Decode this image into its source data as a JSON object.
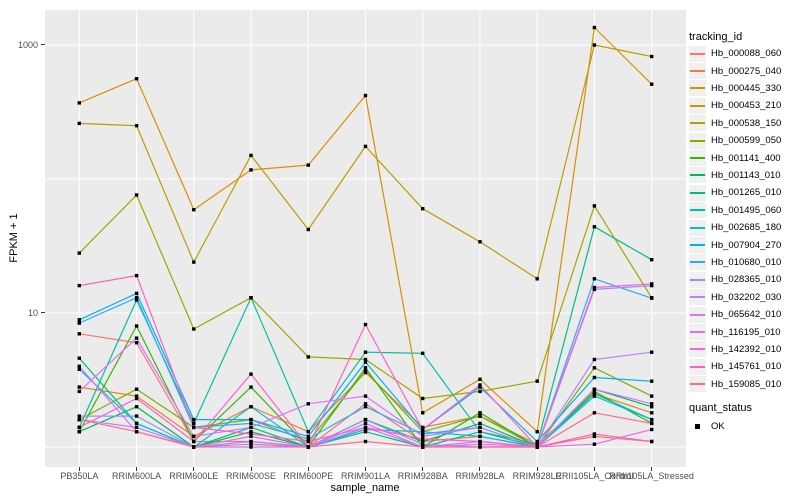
{
  "figure": {
    "background": "#ffffff",
    "panel_background": "#ebebeb",
    "grid_color": "#ffffff",
    "tick_color": "#333333",
    "tick_label_color": "#4d4d4d",
    "marker_color": "#000000"
  },
  "axes": {
    "x_title": "sample_name",
    "y_title": "FPKM + 1",
    "y_ticks": [
      {
        "label": "1000",
        "value": 1000
      },
      {
        "label": "10",
        "value": 10
      }
    ]
  },
  "legend": {
    "tracking_title": "tracking_id",
    "quant_title": "quant_status",
    "quant_items": [
      {
        "label": "OK",
        "marker": "black-square"
      }
    ]
  },
  "chart_data": {
    "type": "line",
    "title": "",
    "xlabel": "sample_name",
    "ylabel": "FPKM + 1",
    "y_scale": "log10",
    "ylim": [
      1,
      1400
    ],
    "y_gridlines": [
      1,
      10,
      100,
      1000
    ],
    "grid": "major-only",
    "legend_position": "right",
    "marker": {
      "shape": "square",
      "color": "#000000",
      "size": 3.4
    },
    "categories": [
      "PB350LA",
      "RRIM600LA",
      "RRIM600LE",
      "RRIM600SE",
      "RRIM600PE",
      "RRIM901LA",
      "RRIM928BA",
      "RRIM928LA",
      "RRIM928LE",
      "RRII105LA_Control",
      "RRII105LA_Stressed"
    ],
    "series": [
      {
        "name": "Hb_000088_060",
        "color": "#F8766D",
        "values": [
          7,
          6,
          1.1,
          1.1,
          1,
          2.1,
          1.1,
          1.2,
          1,
          1.2,
          1.1
        ]
      },
      {
        "name": "Hb_000275_040",
        "color": "#EA8331",
        "values": [
          2.8,
          2.4,
          1.2,
          2,
          1.3,
          3.6,
          1.4,
          1.7,
          1.05,
          2.5,
          1.8
        ]
      },
      {
        "name": "Hb_000445_330",
        "color": "#D89000",
        "values": [
          370,
          560,
          59,
          117,
          127,
          420,
          1.8,
          3.2,
          1.3,
          1350,
          510
        ]
      },
      {
        "name": "Hb_000453_210",
        "color": "#C09B00",
        "values": [
          260,
          250,
          24,
          150,
          42,
          175,
          60,
          34,
          18,
          1000,
          820
        ]
      },
      {
        "name": "Hb_000538_150",
        "color": "#A3A500",
        "values": [
          28,
          76,
          7.6,
          13,
          4.7,
          4.5,
          2.3,
          2.6,
          3.1,
          63,
          13
        ]
      },
      {
        "name": "Hb_000599_050",
        "color": "#7CAE00",
        "values": [
          1.6,
          2.7,
          1.4,
          1.6,
          1.1,
          3.7,
          1.3,
          1.7,
          1,
          3.9,
          2.4
        ]
      },
      {
        "name": "Hb_001141_400",
        "color": "#39B600",
        "values": [
          1.3,
          8,
          1.1,
          2.8,
          1,
          3.9,
          1,
          1.8,
          1,
          2.6,
          1.5
        ]
      },
      {
        "name": "Hb_001143_010",
        "color": "#00BB4E",
        "values": [
          1.3,
          2,
          1,
          1.3,
          1,
          1.6,
          1.1,
          1.5,
          1,
          2.7,
          2
        ]
      },
      {
        "name": "Hb_001265_010",
        "color": "#00BF7D",
        "values": [
          4.6,
          1.5,
          1,
          1.4,
          1,
          1.3,
          1,
          1.3,
          1.05,
          44,
          25
        ]
      },
      {
        "name": "Hb_001495_060",
        "color": "#00C1A3",
        "values": [
          1.4,
          12.5,
          1.5,
          13,
          1.3,
          5.1,
          5,
          1.3,
          1,
          2.5,
          1.6
        ]
      },
      {
        "name": "Hb_002685_180",
        "color": "#00BDE0",
        "values": [
          3.8,
          1.5,
          1,
          2,
          1,
          1.35,
          1.3,
          1.2,
          1,
          2.4,
          1.6
        ]
      },
      {
        "name": "Hb_007904_270",
        "color": "#00B0F6",
        "values": [
          8.9,
          14,
          1.6,
          1.6,
          1.2,
          4.3,
          1.35,
          2.8,
          1.1,
          3.3,
          3.1
        ]
      },
      {
        "name": "Hb_010680_010",
        "color": "#2FA9FF",
        "values": [
          8.4,
          13,
          1.4,
          1.5,
          1.15,
          2,
          1.25,
          1.4,
          1,
          18,
          12.9
        ]
      },
      {
        "name": "Hb_028365_010",
        "color": "#8B93FF",
        "values": [
          1.7,
          1.7,
          1,
          1.1,
          1,
          1.6,
          1.05,
          1,
          1,
          15,
          16
        ]
      },
      {
        "name": "Hb_032202_030",
        "color": "#B983FF",
        "values": [
          1.6,
          1.4,
          1,
          1,
          1,
          1.4,
          1,
          1.1,
          1,
          4.5,
          5.1
        ]
      },
      {
        "name": "Hb_065642_010",
        "color": "#D376FF",
        "values": [
          2.6,
          6.5,
          1.2,
          1.4,
          2.1,
          2.4,
          1.2,
          1.4,
          1,
          2.7,
          2.1
        ]
      },
      {
        "name": "Hb_116195_010",
        "color": "#E76BF3",
        "values": [
          4,
          1.3,
          1,
          1.2,
          1,
          1.5,
          1,
          1.05,
          1,
          1.05,
          1.35
        ]
      },
      {
        "name": "Hb_142392_010",
        "color": "#FD61D0",
        "values": [
          1.4,
          2.3,
          1.1,
          3.5,
          1,
          8.2,
          1.35,
          2.9,
          1,
          15.5,
          16.5
        ]
      },
      {
        "name": "Hb_145761_010",
        "color": "#FF62BA",
        "values": [
          16,
          19,
          1.4,
          1.25,
          1.1,
          1.4,
          1.15,
          1.1,
          1,
          1.25,
          1.1
        ]
      },
      {
        "name": "Hb_159085_010",
        "color": "#FF6C91",
        "values": [
          1.6,
          1.3,
          1,
          1.05,
          1,
          1.1,
          1,
          1,
          1,
          1.8,
          1.5
        ]
      }
    ]
  }
}
